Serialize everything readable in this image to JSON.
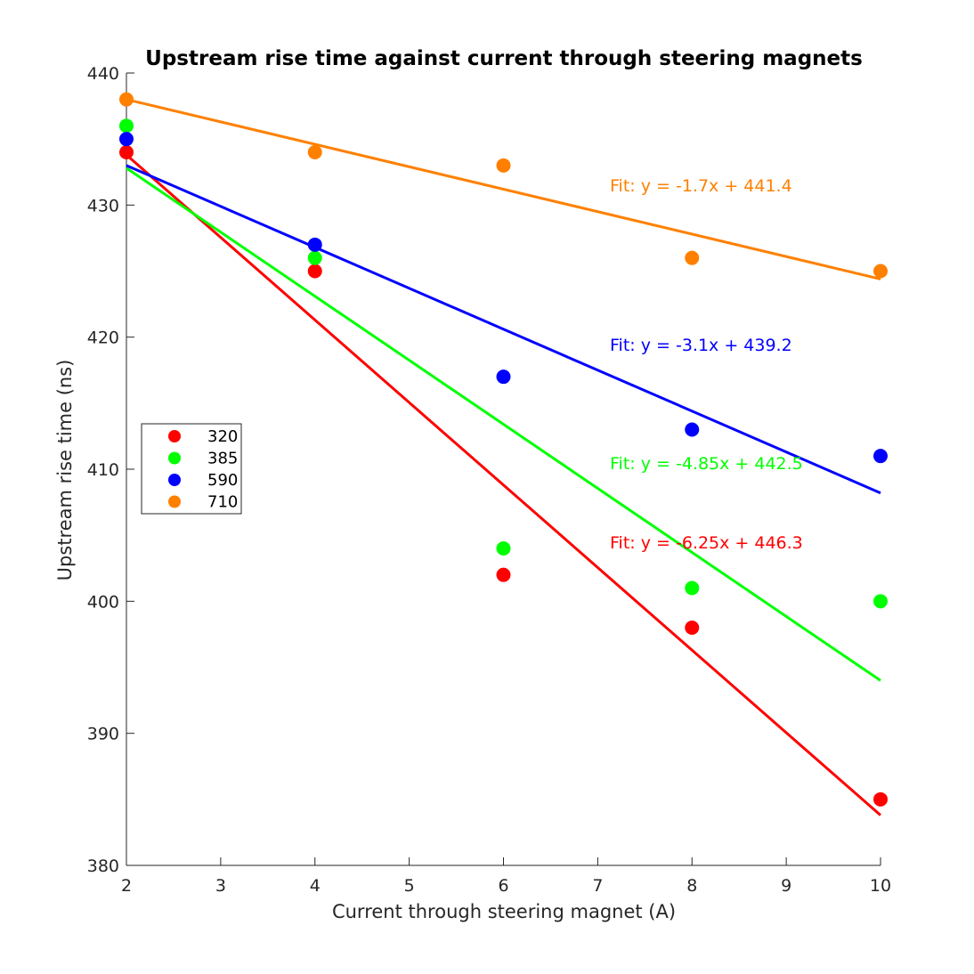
{
  "chart_data": {
    "type": "scatter",
    "title": "Upstream rise time against current through steering magnets",
    "xlabel": "Current through steering magnet (A)",
    "ylabel": "Upstream rise time (ns)",
    "xlim": [
      2,
      10
    ],
    "ylim": [
      380,
      440
    ],
    "xticks": [
      2,
      3,
      4,
      5,
      6,
      7,
      8,
      9,
      10
    ],
    "yticks": [
      380,
      390,
      400,
      410,
      420,
      430,
      440
    ],
    "grid": false,
    "legend_position": "left",
    "x": [
      2,
      4,
      6,
      8,
      10
    ],
    "series": [
      {
        "name": "320",
        "color": "#ff0000",
        "values": [
          434,
          425,
          402,
          398,
          385
        ],
        "fit": {
          "slope": -6.25,
          "intercept": 446.3,
          "label": "Fit: y = -6.25x + 446.3"
        }
      },
      {
        "name": "385",
        "color": "#00ff00",
        "values": [
          436,
          426,
          404,
          401,
          400
        ],
        "fit": {
          "slope": -4.85,
          "intercept": 442.5,
          "label": "Fit: y = -4.85x + 442.5"
        }
      },
      {
        "name": "590",
        "color": "#0000ff",
        "values": [
          435,
          427,
          417,
          413,
          411
        ],
        "fit": {
          "slope": -3.1,
          "intercept": 439.2,
          "label": "Fit: y = -3.1x + 439.2"
        }
      },
      {
        "name": "710",
        "color": "#ff8000",
        "values": [
          438,
          434,
          433,
          426,
          425
        ],
        "fit": {
          "slope": -1.7,
          "intercept": 441.4,
          "label": "Fit: y = -1.7x + 441.4"
        }
      }
    ]
  }
}
